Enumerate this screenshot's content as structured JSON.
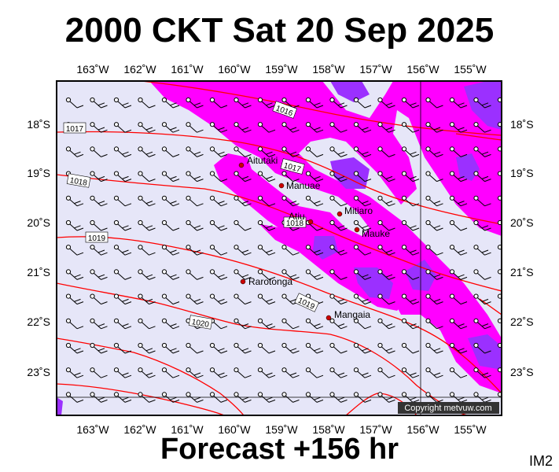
{
  "header": {
    "title": "2000 CKT Sat 20 Sep 2025"
  },
  "footer": {
    "subtitle": "Forecast +156 hr",
    "corner_label": "IM2"
  },
  "copyright": "Copyright metvuw.com",
  "colors": {
    "background": "#e6e6f8",
    "wind_light": "#ff00ff",
    "wind_strong": "#9b30ff",
    "isobar": "#ff0000",
    "place_dot": "#cc0000"
  },
  "axes": {
    "longitudes": [
      "163˚W",
      "162˚W",
      "161˚W",
      "160˚W",
      "159˚W",
      "158˚W",
      "157˚W",
      "156˚W",
      "155˚W"
    ],
    "latitudes": [
      "18˚S",
      "19˚S",
      "20˚S",
      "21˚S",
      "22˚S",
      "23˚S"
    ]
  },
  "places": [
    {
      "name": "Aitutaki"
    },
    {
      "name": "Manuae"
    },
    {
      "name": "Mitiaro"
    },
    {
      "name": "Atiu"
    },
    {
      "name": "Mauke"
    },
    {
      "name": "Rarotonga"
    },
    {
      "name": "Mangaia"
    }
  ],
  "isobar_labels": [
    "1016",
    "1017",
    "1017",
    "1018",
    "1018",
    "1019",
    "1019",
    "1020"
  ]
}
